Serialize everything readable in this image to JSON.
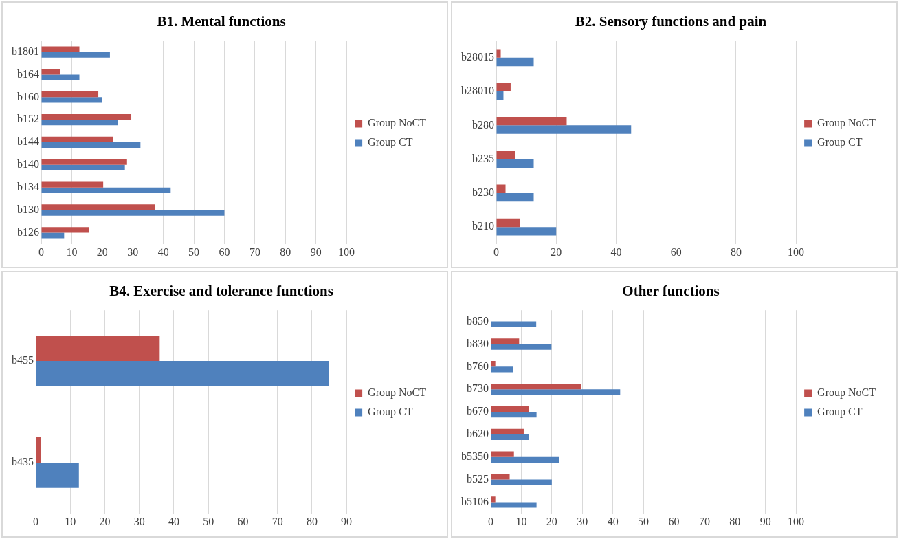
{
  "chart_data": [
    {
      "type": "bar",
      "orientation": "horizontal",
      "title": "B1. Mental functions",
      "categories": [
        "b1801",
        "b164",
        "b160",
        "b152",
        "b144",
        "b140",
        "b134",
        "b130",
        "b126"
      ],
      "series": [
        {
          "name": "Group NoCT",
          "color": "#c0504d",
          "values": [
            12.5,
            6.2,
            18.7,
            29.5,
            23.5,
            28.1,
            20.3,
            37.3,
            15.6
          ]
        },
        {
          "name": "Group CT",
          "color": "#4f81bd",
          "values": [
            22.5,
            12.5,
            20,
            25,
            32.5,
            27.4,
            42.4,
            60,
            7.5
          ]
        }
      ],
      "xlim": [
        0,
        100
      ],
      "xticks": [
        0,
        10,
        20,
        30,
        40,
        50,
        60,
        70,
        80,
        90,
        100
      ],
      "grid": "x",
      "legend": "right"
    },
    {
      "type": "bar",
      "orientation": "horizontal",
      "title": "B2. Sensory functions and pain",
      "categories": [
        "b28015",
        "b28010",
        "b280",
        "b235",
        "b230",
        "b210"
      ],
      "series": [
        {
          "name": "Group NoCT",
          "color": "#c0504d",
          "values": [
            1.5,
            4.8,
            23.5,
            6.3,
            3.1,
            7.8
          ]
        },
        {
          "name": "Group CT",
          "color": "#4f81bd",
          "values": [
            12.5,
            2.4,
            45,
            12.5,
            12.5,
            20
          ]
        }
      ],
      "xlim": [
        0,
        100
      ],
      "xticks": [
        0,
        20,
        40,
        60,
        80,
        100
      ],
      "grid": "x",
      "legend": "right"
    },
    {
      "type": "bar",
      "orientation": "horizontal",
      "title": "B4. Exercise and tolerance functions",
      "categories": [
        "b455",
        "b435"
      ],
      "series": [
        {
          "name": "Group NoCT",
          "color": "#c0504d",
          "values": [
            35.9,
            1.5
          ]
        },
        {
          "name": "Group CT",
          "color": "#4f81bd",
          "values": [
            85,
            12.5
          ]
        }
      ],
      "xlim": [
        0,
        90
      ],
      "xticks": [
        0,
        10,
        20,
        30,
        40,
        50,
        60,
        70,
        80,
        90
      ],
      "grid": "x",
      "legend": "right"
    },
    {
      "type": "bar",
      "orientation": "horizontal",
      "title": "Other functions",
      "categories": [
        "b850",
        "b830",
        "b760",
        "b730",
        "b670",
        "b620",
        "b5350",
        "b525",
        "b5106"
      ],
      "series": [
        {
          "name": "Group NoCT",
          "color": "#c0504d",
          "values": [
            0,
            9.3,
            1.5,
            29.5,
            12.5,
            10.8,
            7.6,
            6.2,
            1.5
          ]
        },
        {
          "name": "Group CT",
          "color": "#4f81bd",
          "values": [
            14.9,
            19.9,
            7.4,
            42.4,
            15,
            12.5,
            22.4,
            20,
            15
          ]
        }
      ],
      "xlim": [
        0,
        100
      ],
      "xticks": [
        0,
        10,
        20,
        30,
        40,
        50,
        60,
        70,
        80,
        90,
        100
      ],
      "grid": "x",
      "legend": "right"
    }
  ]
}
